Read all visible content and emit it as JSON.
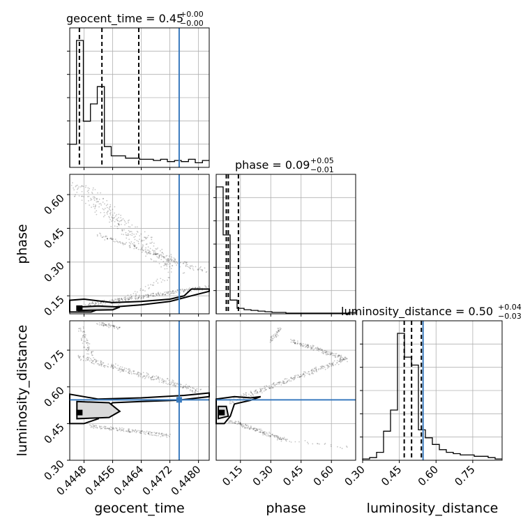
{
  "chart_data": {
    "type": "corner",
    "parameters": [
      "geocent_time",
      "phase",
      "luminosity_distance"
    ],
    "truth_color": "#3a7bbf",
    "truth": {
      "geocent_time": 0.44746,
      "phase": null,
      "luminosity_distance": 0.547
    },
    "panels": [
      {
        "type": "histogram",
        "param": "geocent_time",
        "title": "geocent_time = 0.45",
        "title_sup": "+0.00",
        "title_sub": "−0.00",
        "xlim": [
          0.4444,
          0.4483
        ],
        "bin_edges": [
          0.4444,
          0.44459,
          0.44478,
          0.44498,
          0.44517,
          0.44537,
          0.44556,
          0.44576,
          0.44596,
          0.44615,
          0.44635,
          0.44655,
          0.44674,
          0.44694,
          0.44713,
          0.44733,
          0.44752,
          0.44772,
          0.44791,
          0.44811,
          0.4483
        ],
        "counts": [
          20,
          110,
          40,
          55,
          70,
          18,
          10,
          10,
          8,
          8,
          7,
          7,
          6,
          7,
          5,
          6,
          5,
          7,
          4,
          6
        ],
        "quantiles": [
          0.44467,
          0.4453,
          0.44633
        ],
        "truth": 0.44746
      },
      {
        "type": "histogram",
        "param": "phase",
        "title": "phase = 0.09",
        "title_sup": "+0.05",
        "title_sub": "−0.01",
        "xlim": [
          0.03,
          0.72
        ],
        "bin_edges": [
          0.03,
          0.0645,
          0.099,
          0.1335,
          0.168,
          0.2025,
          0.237,
          0.2715,
          0.306,
          0.3405,
          0.375,
          0.4095,
          0.444,
          0.4785,
          0.513,
          0.5475,
          0.582,
          0.6165,
          0.651,
          0.6855,
          0.72
        ],
        "counts": [
          185,
          115,
          20,
          8,
          6,
          5,
          4,
          3,
          2,
          2,
          1,
          1,
          1,
          1,
          1,
          1,
          1,
          1,
          1,
          2
        ],
        "quantiles": [
          0.08,
          0.09,
          0.14
        ],
        "truth": null
      },
      {
        "type": "histogram",
        "param": "luminosity_distance",
        "title": "luminosity_distance = 0.50",
        "title_sup": "+0.04",
        "title_sub": "−0.03",
        "xlim": [
          0.3,
          0.87
        ],
        "bin_edges": [
          0.3,
          0.3285,
          0.357,
          0.3855,
          0.414,
          0.4425,
          0.471,
          0.4995,
          0.528,
          0.5565,
          0.585,
          0.6135,
          0.642,
          0.6705,
          0.699,
          0.7275,
          0.756,
          0.7845,
          0.813,
          0.8415,
          0.87
        ],
        "counts": [
          1,
          2,
          6,
          22,
          38,
          96,
          78,
          72,
          23,
          17,
          12,
          8,
          6,
          5,
          4,
          4,
          3,
          3,
          2,
          1
        ],
        "quantiles": [
          0.47,
          0.5,
          0.54
        ],
        "truth": 0.547
      },
      {
        "type": "scatter+contour",
        "x": "geocent_time",
        "y": "phase",
        "xlim": [
          0.4444,
          0.4483
        ],
        "ylim": [
          0.07,
          0.69
        ],
        "truth_x": 0.44746,
        "truth_y": null
      },
      {
        "type": "scatter+contour",
        "x": "geocent_time",
        "y": "luminosity_distance",
        "xlim": [
          0.4444,
          0.4483
        ],
        "ylim": [
          0.3,
          0.87
        ],
        "truth_x": 0.44746,
        "truth_y": 0.547
      },
      {
        "type": "scatter+contour",
        "x": "phase",
        "y": "luminosity_distance",
        "xlim": [
          0.03,
          0.72
        ],
        "ylim": [
          0.3,
          0.87
        ],
        "truth_x": null,
        "truth_y": 0.547
      }
    ],
    "xlabels": [
      "geocent_time",
      "phase",
      "luminosity_distance"
    ],
    "ylabels": [
      "phase",
      "luminosity_distance"
    ],
    "ticks": {
      "geocent_time": {
        "values": [
          0.4448,
          0.4456,
          0.4464,
          0.4472,
          0.448
        ],
        "labels": [
          "0.4448",
          "0.4456",
          "0.4464",
          "0.4472",
          "0.4480"
        ]
      },
      "phase": {
        "values": [
          0.15,
          0.3,
          0.45,
          0.6
        ],
        "labels": [
          "0.15",
          "0.30",
          "0.45",
          "0.60"
        ]
      },
      "luminosity_distance": {
        "values": [
          0.3,
          0.45,
          0.6,
          0.75
        ],
        "labels": [
          "0.30",
          "0.45",
          "0.60",
          "0.75"
        ]
      }
    },
    "grid": true
  }
}
